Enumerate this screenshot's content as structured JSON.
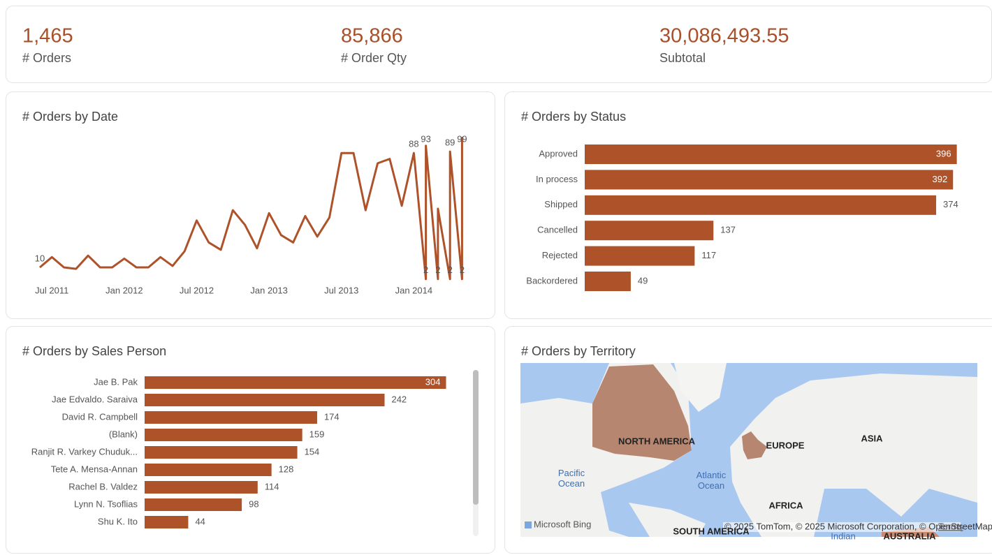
{
  "kpis": [
    {
      "value": "1,465",
      "label": "# Orders"
    },
    {
      "value": "85,866",
      "label": "# Order Qty"
    },
    {
      "value": "30,086,493.55",
      "label": "Subtotal"
    }
  ],
  "chart_data": [
    {
      "type": "line",
      "title": "# Orders by Date",
      "color": "#ae5229",
      "categories": [
        "2011-06",
        "2011-07",
        "2011-08",
        "2011-09",
        "2011-10",
        "2011-11",
        "2011-12",
        "2012-01",
        "2012-02",
        "2012-03",
        "2012-04",
        "2012-05",
        "2012-06",
        "2012-07",
        "2012-08",
        "2012-09",
        "2012-10",
        "2012-11",
        "2012-12",
        "2013-01",
        "2013-02",
        "2013-03",
        "2013-04",
        "2013-05",
        "2013-06",
        "2013-07",
        "2013-08",
        "2013-09",
        "2013-10",
        "2013-11",
        "2013-12",
        "2014-01",
        "2014-02",
        "2014-02",
        "2014-03",
        "2014-03",
        "2014-04",
        "2014-04",
        "2014-05",
        "2014-05"
      ],
      "values": [
        10,
        17,
        10,
        9,
        18,
        10,
        10,
        16,
        10,
        10,
        17,
        11,
        21,
        42,
        27,
        22,
        49,
        39,
        23,
        47,
        32,
        27,
        45,
        31,
        44,
        88,
        88,
        49,
        81,
        84,
        52,
        88,
        2,
        93,
        2,
        50,
        2,
        89,
        2,
        99
      ],
      "value_labels": [
        "10",
        null,
        null,
        null,
        null,
        null,
        null,
        null,
        null,
        null,
        null,
        null,
        null,
        null,
        null,
        null,
        null,
        null,
        null,
        null,
        null,
        null,
        null,
        null,
        null,
        null,
        null,
        null,
        null,
        null,
        null,
        "88",
        "2",
        "93",
        "2",
        null,
        "2",
        "89",
        "2",
        "99"
      ],
      "ylim": [
        0,
        100
      ],
      "xticks": [
        {
          "value": "2011-07",
          "label": "Jul 2011"
        },
        {
          "value": "2012-01",
          "label": "Jan 2012"
        },
        {
          "value": "2012-07",
          "label": "Jul 2012"
        },
        {
          "value": "2013-01",
          "label": "Jan 2013"
        },
        {
          "value": "2013-07",
          "label": "Jul 2013"
        },
        {
          "value": "2014-01",
          "label": "Jan 2014"
        }
      ]
    },
    {
      "type": "hbar",
      "title": "# Orders by Status",
      "color": "#ae5229",
      "categories": [
        "Approved",
        "In process",
        "Shipped",
        "Cancelled",
        "Rejected",
        "Backordered"
      ],
      "values": [
        396,
        392,
        374,
        137,
        117,
        49
      ],
      "xlim": [
        0,
        400
      ]
    },
    {
      "type": "hbar",
      "title": "# Orders by Sales Person",
      "color": "#ae5229",
      "categories": [
        "Jae B. Pak",
        "Jae Edvaldo. Saraiva",
        "David R. Campbell",
        "(Blank)",
        "Ranjit R. Varkey Chuduk...",
        "Tete A. Mensa-Annan",
        "Rachel B. Valdez",
        "Lynn N. Tsoflias",
        "Shu K. Ito"
      ],
      "values": [
        304,
        242,
        174,
        159,
        154,
        128,
        114,
        98,
        44
      ],
      "xlim": [
        0,
        310
      ]
    }
  ],
  "map": {
    "title": "# Orders by Territory",
    "labels": [
      "NORTH AMERICA",
      "EUROPE",
      "ASIA",
      "AFRICA",
      "SOUTH AMERICA",
      "AUSTRALIA",
      "Pacific Ocean",
      "Atlantic Ocean",
      "Indian"
    ],
    "attribution": "Microsoft Bing",
    "copyright": "© 2025 TomTom, © 2025 Microsoft Corporation, © OpenStreetMap",
    "terms": "Terms"
  }
}
